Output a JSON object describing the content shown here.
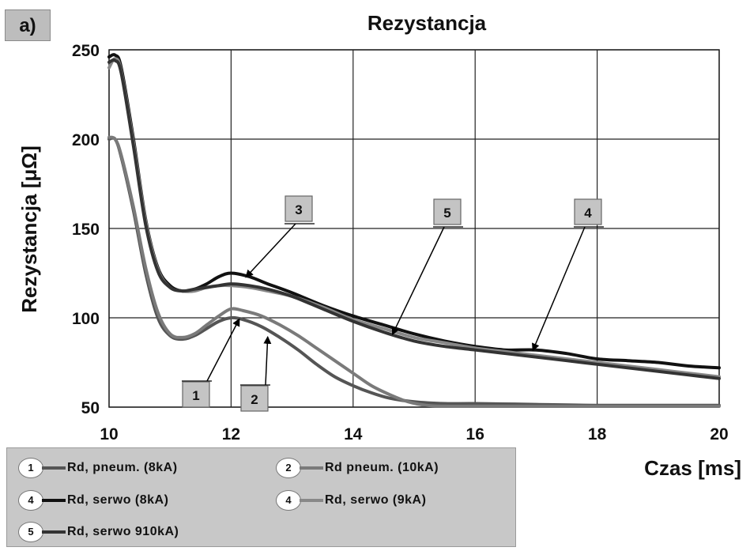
{
  "panel_label": "a)",
  "chart_data": {
    "type": "line",
    "title": "Rezystancja",
    "xlabel": "Czas [ms]",
    "ylabel": "Rezystancja  [μΩ]",
    "xlim": [
      10,
      20
    ],
    "ylim": [
      50,
      250
    ],
    "xticks": [
      10,
      12,
      14,
      16,
      18,
      20
    ],
    "yticks": [
      50,
      100,
      150,
      200,
      250
    ],
    "grid": true,
    "series": [
      {
        "id": "1",
        "name": "Rd, pneum. (8kA)",
        "color": "#555555",
        "x": [
          10.0,
          10.1,
          10.2,
          10.4,
          10.6,
          10.8,
          11.0,
          11.2,
          11.4,
          11.6,
          11.8,
          12.0,
          12.2,
          12.5,
          12.8,
          13.1,
          13.4,
          13.7,
          14.0,
          14.3,
          14.6,
          15.0,
          15.5,
          16.0,
          17.0,
          18.0,
          19.0,
          20.0
        ],
        "y": [
          200,
          200,
          190,
          160,
          125,
          100,
          90,
          88,
          90,
          94,
          98,
          100,
          99,
          95,
          89,
          82,
          74,
          67,
          62,
          58,
          55,
          53,
          52,
          52,
          51.5,
          51,
          51,
          51
        ]
      },
      {
        "id": "2",
        "name": "Rd pneum. (10kA)",
        "color": "#7a7a7a",
        "x": [
          10.0,
          10.1,
          10.2,
          10.4,
          10.6,
          10.8,
          11.0,
          11.2,
          11.4,
          11.6,
          11.8,
          12.0,
          12.2,
          12.5,
          12.8,
          13.1,
          13.4,
          13.7,
          14.0,
          14.3,
          14.6,
          14.9,
          15.2,
          15.5,
          16.0,
          17.0,
          18.0,
          19.0,
          20.0
        ],
        "y": [
          201,
          200,
          191,
          162,
          128,
          103,
          91,
          89,
          91,
          96,
          101,
          105,
          104,
          101,
          96,
          90,
          83,
          76,
          69,
          62,
          57,
          53,
          51,
          50.5,
          50.5,
          50.5,
          50.5,
          50.5,
          50.5
        ]
      },
      {
        "id": "4",
        "name": "Rd, serwo (8kA)",
        "color": "#111111",
        "x": [
          10.0,
          10.1,
          10.2,
          10.4,
          10.6,
          10.8,
          11.0,
          11.2,
          11.4,
          11.6,
          11.8,
          12.0,
          12.3,
          12.6,
          13.0,
          13.5,
          14.0,
          14.5,
          15.0,
          15.5,
          16.0,
          16.5,
          17.0,
          17.5,
          18.0,
          18.5,
          19.0,
          19.5,
          20.0
        ],
        "y": [
          246,
          247,
          240,
          200,
          155,
          128,
          118,
          115,
          116,
          119,
          123,
          125,
          123,
          119,
          114,
          107,
          101,
          96,
          91,
          87,
          84,
          82,
          82,
          80,
          77,
          76,
          75,
          73,
          72
        ]
      },
      {
        "id": "4",
        "name": "Rd, serwo (9kA)",
        "color": "#888888",
        "x": [
          10.0,
          10.1,
          10.2,
          10.4,
          10.6,
          10.8,
          11.0,
          11.2,
          11.4,
          11.6,
          11.8,
          12.0,
          12.3,
          12.6,
          13.0,
          13.5,
          14.0,
          14.5,
          15.0,
          15.5,
          16.0,
          16.5,
          17.0,
          17.5,
          18.0,
          18.5,
          19.0,
          19.5,
          20.0
        ],
        "y": [
          240,
          245,
          238,
          198,
          154,
          127,
          117,
          115,
          115,
          117,
          118,
          118,
          117,
          115,
          112,
          106,
          99,
          94,
          89,
          86,
          83,
          81,
          79,
          77,
          75,
          73,
          71,
          69,
          67
        ]
      },
      {
        "id": "5",
        "name": "Rd, serwo 910kA)",
        "color": "#333333",
        "x": [
          10.0,
          10.1,
          10.2,
          10.4,
          10.6,
          10.8,
          11.0,
          11.2,
          11.4,
          11.6,
          11.8,
          12.0,
          12.3,
          12.6,
          13.0,
          13.5,
          14.0,
          14.5,
          15.0,
          15.5,
          16.0,
          16.5,
          17.0,
          17.5,
          18.0,
          18.5,
          19.0,
          19.5,
          20.0
        ],
        "y": [
          243,
          244,
          237,
          196,
          152,
          126,
          117,
          115,
          116,
          117,
          118,
          119,
          118,
          116,
          112,
          105,
          98,
          92,
          87,
          84,
          82,
          80,
          78,
          76,
          74,
          72,
          70,
          68,
          66
        ]
      }
    ],
    "annotations": [
      {
        "label": "1",
        "target_x": 12.13,
        "target_y": 99
      },
      {
        "label": "2",
        "target_x": 12.6,
        "target_y": 89
      },
      {
        "label": "3",
        "target_x": 12.25,
        "target_y": 123
      },
      {
        "label": "5",
        "target_x": 14.65,
        "target_y": 91
      },
      {
        "label": "4",
        "target_x": 16.95,
        "target_y": 82
      }
    ]
  },
  "legend": {
    "entries": [
      {
        "num": "1",
        "label": "Rd, pneum. (8kA)",
        "color": "#555555"
      },
      {
        "num": "2",
        "label": "Rd pneum. (10kA)",
        "color": "#7a7a7a"
      },
      {
        "num": "4",
        "label": "Rd, serwo (8kA)",
        "color": "#111111"
      },
      {
        "num": "4",
        "label": "Rd, serwo (9kA)",
        "color": "#888888"
      },
      {
        "num": "5",
        "label": "Rd, serwo 910kA)",
        "color": "#333333"
      }
    ]
  }
}
